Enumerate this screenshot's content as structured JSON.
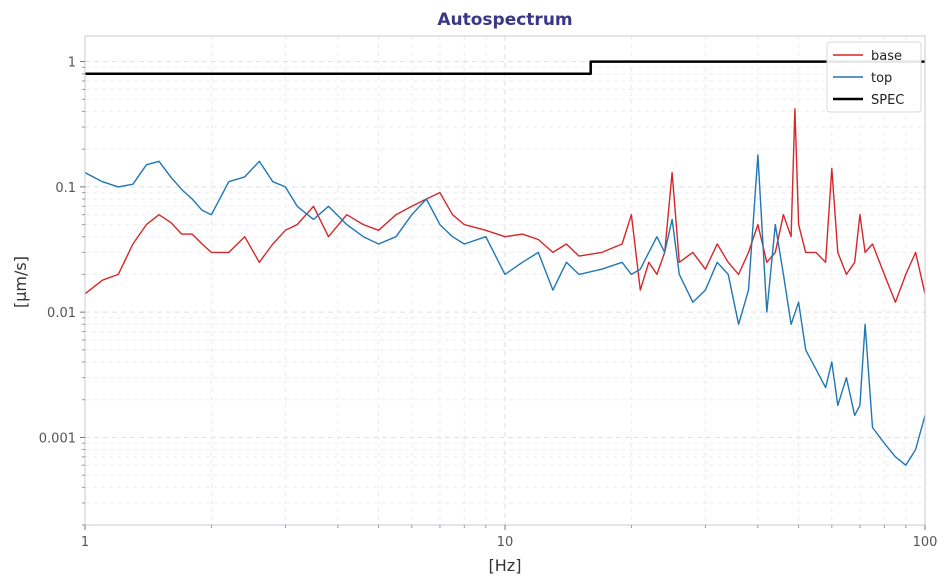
{
  "chart_data": {
    "type": "line",
    "title": "Autospectrum",
    "xlabel": "[Hz]",
    "ylabel": "[µm/s]",
    "x_scale": "log",
    "y_scale": "log",
    "xlim": [
      1,
      100
    ],
    "ylim": [
      0.0002,
      1.6
    ],
    "grid": true,
    "legend_position": "top-right",
    "x_ticks": [
      {
        "value": 1,
        "label": "1"
      },
      {
        "value": 10,
        "label": "10"
      },
      {
        "value": 100,
        "label": "100"
      }
    ],
    "y_ticks": [
      {
        "value": 1,
        "label": "1"
      },
      {
        "value": 0.1,
        "label": "0.1"
      },
      {
        "value": 0.01,
        "label": "0.01"
      },
      {
        "value": 0.001,
        "label": "0.001"
      }
    ],
    "colors": {
      "base": "#d62728",
      "top": "#1f77b4",
      "spec": "#000000",
      "title": "#3a3787"
    },
    "series": [
      {
        "name": "base",
        "x": [
          1.0,
          1.1,
          1.2,
          1.3,
          1.4,
          1.5,
          1.6,
          1.7,
          1.8,
          1.9,
          2.0,
          2.2,
          2.4,
          2.6,
          2.8,
          3.0,
          3.2,
          3.5,
          3.8,
          4.2,
          4.6,
          5.0,
          5.5,
          6.0,
          6.5,
          7.0,
          7.5,
          8.0,
          9.0,
          10.0,
          11.0,
          12.0,
          13.0,
          14.0,
          15.0,
          17.0,
          19.0,
          20.0,
          21.0,
          22.0,
          23.0,
          24.0,
          25.0,
          26.0,
          28.0,
          30.0,
          32.0,
          34.0,
          36.0,
          38.0,
          40.0,
          42.0,
          44.0,
          46.0,
          48.0,
          49.0,
          50.0,
          52.0,
          55.0,
          58.0,
          60.0,
          62.0,
          65.0,
          68.0,
          70.0,
          72.0,
          75.0,
          80.0,
          85.0,
          90.0,
          95.0,
          100.0
        ],
        "y": [
          0.014,
          0.018,
          0.02,
          0.035,
          0.05,
          0.06,
          0.052,
          0.042,
          0.042,
          0.035,
          0.03,
          0.03,
          0.04,
          0.025,
          0.035,
          0.045,
          0.05,
          0.07,
          0.04,
          0.06,
          0.05,
          0.045,
          0.06,
          0.07,
          0.08,
          0.09,
          0.06,
          0.05,
          0.045,
          0.04,
          0.042,
          0.038,
          0.03,
          0.035,
          0.028,
          0.03,
          0.035,
          0.06,
          0.015,
          0.025,
          0.02,
          0.03,
          0.13,
          0.025,
          0.03,
          0.022,
          0.035,
          0.025,
          0.02,
          0.03,
          0.05,
          0.025,
          0.03,
          0.06,
          0.04,
          0.42,
          0.05,
          0.03,
          0.03,
          0.025,
          0.14,
          0.03,
          0.02,
          0.025,
          0.06,
          0.03,
          0.035,
          0.02,
          0.012,
          0.02,
          0.03,
          0.014
        ]
      },
      {
        "name": "top",
        "x": [
          1.0,
          1.1,
          1.2,
          1.3,
          1.4,
          1.5,
          1.6,
          1.7,
          1.8,
          1.9,
          2.0,
          2.2,
          2.4,
          2.6,
          2.8,
          3.0,
          3.2,
          3.5,
          3.8,
          4.2,
          4.6,
          5.0,
          5.5,
          6.0,
          6.5,
          7.0,
          7.5,
          8.0,
          9.0,
          10.0,
          11.0,
          12.0,
          13.0,
          14.0,
          15.0,
          17.0,
          19.0,
          20.0,
          21.0,
          22.0,
          23.0,
          24.0,
          25.0,
          26.0,
          28.0,
          30.0,
          32.0,
          34.0,
          36.0,
          38.0,
          40.0,
          42.0,
          44.0,
          46.0,
          48.0,
          50.0,
          52.0,
          55.0,
          58.0,
          60.0,
          62.0,
          65.0,
          68.0,
          70.0,
          72.0,
          75.0,
          80.0,
          85.0,
          90.0,
          95.0,
          100.0
        ],
        "y": [
          0.13,
          0.11,
          0.1,
          0.105,
          0.15,
          0.16,
          0.12,
          0.095,
          0.08,
          0.065,
          0.06,
          0.11,
          0.12,
          0.16,
          0.11,
          0.1,
          0.07,
          0.055,
          0.07,
          0.05,
          0.04,
          0.035,
          0.04,
          0.06,
          0.08,
          0.05,
          0.04,
          0.035,
          0.04,
          0.02,
          0.025,
          0.03,
          0.015,
          0.025,
          0.02,
          0.022,
          0.025,
          0.02,
          0.022,
          0.03,
          0.04,
          0.03,
          0.055,
          0.02,
          0.012,
          0.015,
          0.025,
          0.02,
          0.008,
          0.015,
          0.18,
          0.01,
          0.05,
          0.02,
          0.008,
          0.012,
          0.005,
          0.0035,
          0.0025,
          0.004,
          0.0018,
          0.003,
          0.0015,
          0.0018,
          0.008,
          0.0012,
          0.0009,
          0.0007,
          0.0006,
          0.0008,
          0.0015
        ]
      },
      {
        "name": "SPEC",
        "x": [
          1,
          16,
          16,
          100
        ],
        "y": [
          0.8,
          0.8,
          1.0,
          1.0
        ]
      }
    ]
  }
}
